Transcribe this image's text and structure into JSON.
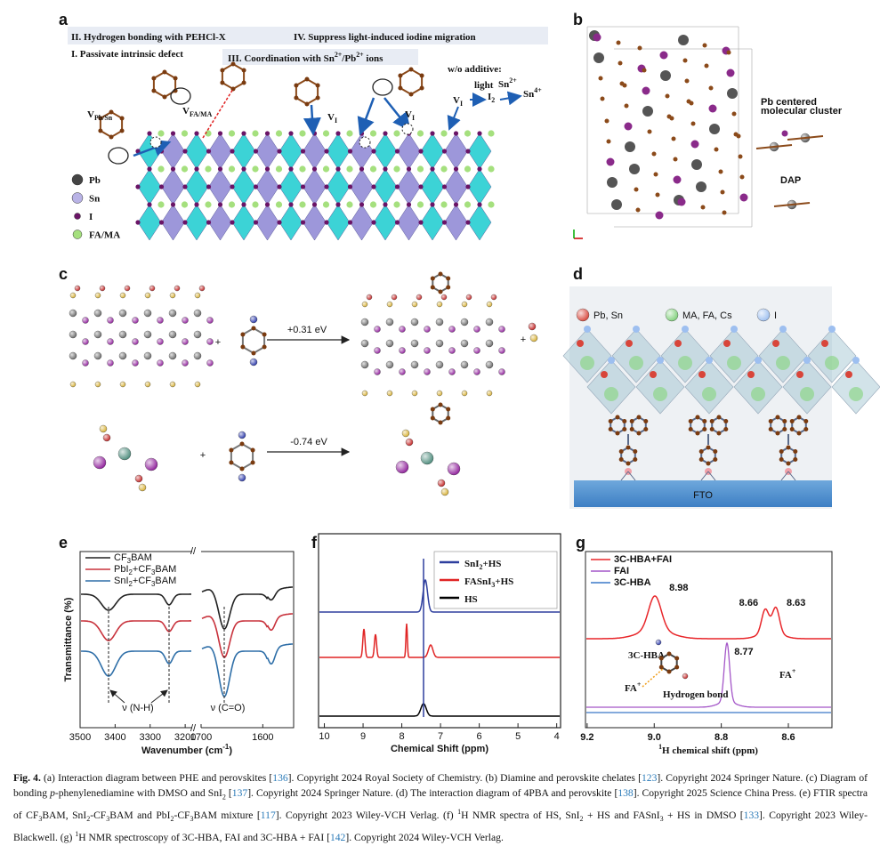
{
  "figure": {
    "a": {
      "label": "a",
      "texts": [
        [
          {
            "text": "II. Hydrogen bonding with PEHCl-X"
          }
        ],
        [
          {
            "text": "IV. Suppress light-induced iodine migration"
          }
        ],
        [
          {
            "text": "I. Passivate intrinsic defect"
          }
        ],
        [
          {
            "text": "III. Coordination with Sn"
          },
          {
            "sup": "2+"
          },
          {
            "text": "/Pb"
          },
          {
            "sup": "2+"
          },
          {
            "text": " ions"
          }
        ],
        [
          {
            "text": "w/o additive:"
          }
        ],
        [
          {
            "text": "light"
          }
        ],
        [
          {
            "text": "Sn"
          },
          {
            "sup": "2+"
          }
        ],
        [
          {
            "text": "V"
          },
          {
            "sub": "I"
          }
        ],
        [
          {
            "text": "I"
          },
          {
            "sub": "2"
          }
        ],
        [
          {
            "text": "Sn"
          },
          {
            "sup": "4+"
          }
        ],
        [
          {
            "text": "V"
          },
          {
            "sub": "Pb/Sn"
          }
        ],
        [
          {
            "text": "V"
          },
          {
            "sub": "FA/MA"
          }
        ],
        [
          {
            "text": "V"
          },
          {
            "sub": "I"
          }
        ],
        [
          {
            "text": "V"
          },
          {
            "sub": "I"
          }
        ]
      ],
      "legend": [
        "Pb",
        "Sn",
        "I",
        "FA/MA"
      ]
    },
    "b": {
      "label": "b",
      "texts": [
        "Pb centered",
        "molecular cluster",
        "DAP"
      ]
    },
    "c": {
      "label": "c",
      "energies": [
        "+0.31 eV",
        "-0.74 eV"
      ]
    },
    "d": {
      "label": "d",
      "legend": [
        "Pb, Sn",
        "MA, FA, Cs",
        "I"
      ],
      "substrate": "FTO"
    },
    "e": {
      "label": "e",
      "legend": [
        [
          {
            "text": "CF"
          },
          {
            "sub": "3"
          },
          {
            "text": "BAM"
          }
        ],
        [
          {
            "text": "PbI"
          },
          {
            "sub": "2"
          },
          {
            "text": "+CF"
          },
          {
            "sub": "3"
          },
          {
            "text": "BAM"
          }
        ],
        [
          {
            "text": "SnI"
          },
          {
            "sub": "2"
          },
          {
            "text": "+CF"
          },
          {
            "sub": "3"
          },
          {
            "text": "BAM"
          }
        ]
      ],
      "colors": [
        "#222222",
        "#c8323c",
        "#2f6fa8"
      ],
      "ylabel": "Transmittance (%)",
      "xlabel": [
        {
          "text": "Wavenumber (cm"
        },
        {
          "sup": "-1"
        },
        {
          "text": ")"
        }
      ],
      "segments": [
        {
          "xlim": [
            3500,
            3180
          ],
          "xticks": [
            3500,
            3400,
            3300,
            3200
          ]
        },
        {
          "xlim": [
            1700,
            1550
          ],
          "xticks": [
            1700,
            1600
          ]
        }
      ],
      "annotations": [
        "ν (N-H)",
        "ν (C=O)"
      ]
    },
    "f": {
      "label": "f",
      "legend": [
        [
          {
            "text": "SnI"
          },
          {
            "sub": "2"
          },
          {
            "text": "+HS"
          }
        ],
        [
          {
            "text": "FASnI"
          },
          {
            "sub": "3"
          },
          {
            "text": "+HS"
          }
        ],
        [
          {
            "text": "HS"
          }
        ]
      ],
      "colors": [
        "#2e3f9e",
        "#e02424",
        "#000000"
      ],
      "xlabel": "Chemical Shift (ppm)",
      "xlim": [
        10.15,
        3.9
      ],
      "xticks": [
        10,
        9,
        8,
        7,
        6,
        5,
        4
      ]
    },
    "g": {
      "label": "g",
      "legend": [
        "3C-HBA+FAI",
        "FAI",
        "3C-HBA"
      ],
      "colors": [
        "#e8262a",
        "#a456c8",
        "#3a78c8"
      ],
      "xlabel": [
        {
          "sup": "1"
        },
        {
          "text": "H chemical shift (ppm)"
        }
      ],
      "xlim": [
        9.205,
        8.47
      ],
      "xticks": [
        9.2,
        {
          "value": 9,
          "label": "9.0"
        },
        8.8,
        8.6
      ],
      "peaks": [
        8.98,
        8.66,
        8.63,
        8.77
      ],
      "annotations": [
        [
          {
            "text": "3C-HBA"
          }
        ],
        [
          {
            "text": "FA"
          },
          {
            "sup": "+"
          }
        ],
        [
          {
            "text": "Hydrogen bond"
          }
        ],
        [
          {
            "text": "FA"
          },
          {
            "sup": "+"
          }
        ]
      ]
    }
  },
  "caption": [
    {
      "bold": "Fig. 4."
    },
    {
      "text": " (a) Interaction diagram between PHE and perovskites ["
    },
    {
      "ref": "136"
    },
    {
      "text": "]. Copyright 2024 Royal Society of Chemistry. (b) Diamine and perovskite chelates ["
    },
    {
      "ref": "123"
    },
    {
      "text": "]. Copyright 2024 Springer Nature. (c) Diagram of bonding "
    },
    {
      "italic": "p"
    },
    {
      "text": "-phenylenediamine with DMSO and SnI"
    },
    {
      "sub": "2"
    },
    {
      "text": " ["
    },
    {
      "ref": "137"
    },
    {
      "text": "]. Copyright 2024 Springer Nature. (d) The interaction diagram of 4PBA and perovskite ["
    },
    {
      "ref": "138"
    },
    {
      "text": "]. Copyright 2025 Science China Press. (e) FTIR spectra of CF"
    },
    {
      "sub": "3"
    },
    {
      "text": "BAM, SnI"
    },
    {
      "sub": "2"
    },
    {
      "text": "-CF"
    },
    {
      "sub": "3"
    },
    {
      "text": "BAM and PbI"
    },
    {
      "sub": "2"
    },
    {
      "text": "-CF"
    },
    {
      "sub": "3"
    },
    {
      "text": "BAM mixture ["
    },
    {
      "ref": "117"
    },
    {
      "text": "]. Copyright 2023 Wiley-VCH Verlag. (f) "
    },
    {
      "sup": "1"
    },
    {
      "text": "H NMR spectra of HS, SnI"
    },
    {
      "sub": "2"
    },
    {
      "text": " + HS and FASnI"
    },
    {
      "sub": "3"
    },
    {
      "text": " + HS in DMSO ["
    },
    {
      "ref": "133"
    },
    {
      "text": "]. Copyright 2023 Wiley-Blackwell. (g) "
    },
    {
      "sup": "1"
    },
    {
      "text": "H NMR spectroscopy of 3C-HBA, FAI and 3C-HBA + FAI ["
    },
    {
      "ref": "142"
    },
    {
      "text": "]. Copyright 2024 Wiley-VCH Verlag."
    }
  ]
}
